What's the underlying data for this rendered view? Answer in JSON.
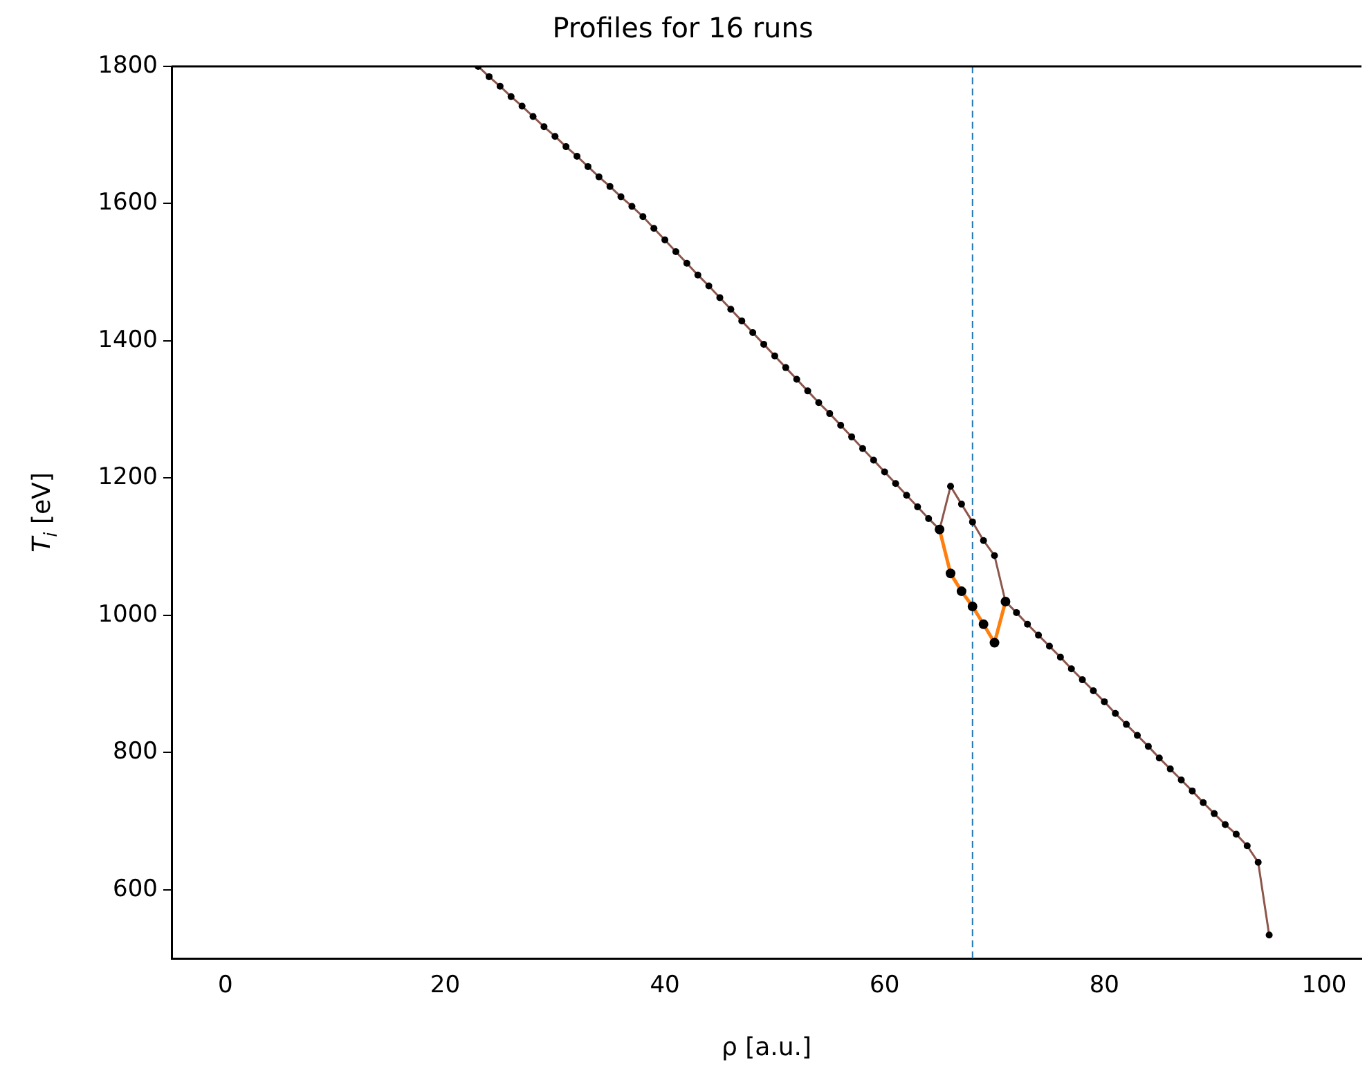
{
  "chart_data": {
    "type": "line",
    "title": "Profiles for 16 runs",
    "xlabel": "ρ [a.u.]",
    "ylabel": "T$_{i}$ [eV]",
    "xlim": [
      -4.9,
      103.4
    ],
    "ylim": [
      500,
      1800
    ],
    "xticks": [
      0,
      20,
      40,
      60,
      80,
      100
    ],
    "yticks": [
      600,
      800,
      1000,
      1200,
      1400,
      1600,
      1800
    ],
    "grid": false,
    "legend": false,
    "marker": "circle",
    "line_style": "solid",
    "series": [
      {
        "color": "#ff7f0e",
        "x": [
          65,
          66,
          67,
          68,
          69,
          70,
          71
        ],
        "values": [
          1125,
          1061,
          1035,
          1013,
          987,
          960,
          1020
        ]
      },
      {
        "color": "#8c564b",
        "x": [
          23,
          24,
          25,
          26,
          27,
          28,
          29,
          30,
          31,
          32,
          33,
          34,
          35,
          36,
          37,
          38,
          39,
          40,
          41,
          42,
          43,
          44,
          45,
          46,
          47,
          48,
          49,
          50,
          51,
          52,
          53,
          54,
          55,
          56,
          57,
          58,
          59,
          60,
          61,
          62,
          63,
          64,
          65,
          66,
          67,
          68,
          69,
          70,
          71,
          72,
          73,
          74,
          75,
          76,
          77,
          78,
          79,
          80,
          81,
          82,
          83,
          84,
          85,
          86,
          87,
          88,
          89,
          90,
          91,
          92,
          93,
          94,
          95
        ],
        "values": [
          1800,
          1785,
          1771,
          1756,
          1742,
          1727,
          1712,
          1698,
          1683,
          1669,
          1654,
          1639,
          1625,
          1610,
          1596,
          1581,
          1564,
          1547,
          1530,
          1513,
          1496,
          1480,
          1463,
          1446,
          1429,
          1412,
          1395,
          1378,
          1361,
          1344,
          1327,
          1310,
          1294,
          1277,
          1260,
          1243,
          1226,
          1209,
          1192,
          1175,
          1158,
          1141,
          1125,
          1188,
          1162,
          1136,
          1109,
          1087,
          1020,
          1004,
          987,
          971,
          955,
          939,
          922,
          906,
          890,
          874,
          857,
          841,
          825,
          809,
          792,
          776,
          760,
          744,
          727,
          711,
          695,
          681,
          664,
          640,
          534
        ]
      }
    ],
    "ref_lines": [
      {
        "axis": "x",
        "value": 68,
        "color": "#1f77b4",
        "line_style": "dashed"
      }
    ]
  }
}
